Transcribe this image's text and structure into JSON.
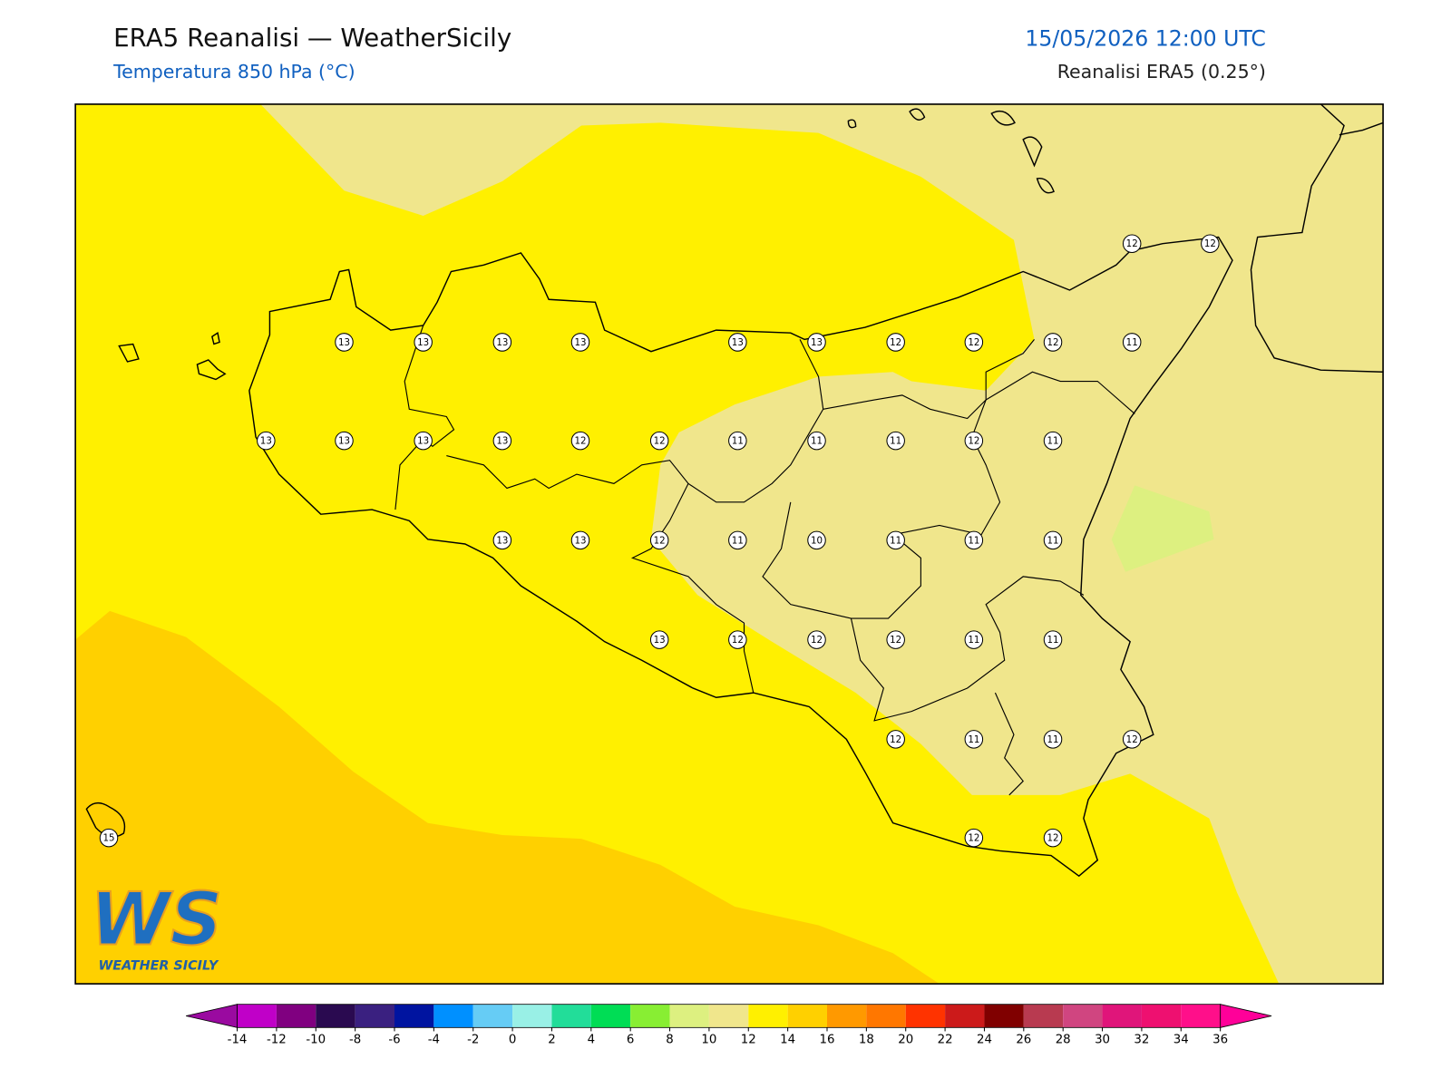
{
  "header": {
    "title": "ERA5 Reanalisi — WeatherSicily",
    "subtitle": "Temperatura 850 hPa (°C)",
    "valid_time": "15/05/2026 12:00 UTC",
    "source": "Reanalisi ERA5 (0.25°)"
  },
  "map": {
    "station_grid": [
      [
        null,
        null,
        null,
        null,
        null,
        null,
        null,
        null,
        null,
        null,
        null,
        null,
        12,
        12
      ],
      [
        null,
        null,
        13,
        13,
        13,
        13,
        null,
        13,
        13,
        12,
        12,
        12,
        11,
        null
      ],
      [
        null,
        13,
        13,
        13,
        13,
        12,
        12,
        11,
        11,
        11,
        12,
        11,
        null,
        null
      ],
      [
        null,
        null,
        null,
        null,
        13,
        13,
        12,
        11,
        10,
        11,
        11,
        11,
        null,
        null
      ],
      [
        null,
        null,
        null,
        null,
        null,
        null,
        13,
        12,
        12,
        12,
        11,
        11,
        null,
        null
      ],
      [
        null,
        null,
        null,
        null,
        null,
        null,
        null,
        null,
        null,
        12,
        11,
        11,
        12,
        null
      ],
      [
        15,
        null,
        null,
        null,
        null,
        null,
        null,
        null,
        null,
        null,
        12,
        12,
        null,
        null
      ]
    ]
  },
  "logo": {
    "mark": "WS",
    "name": "WEATHER SICILY"
  },
  "colorbar": {
    "ticks": [
      -14,
      -12,
      -10,
      -8,
      -6,
      -4,
      -2,
      0,
      2,
      4,
      6,
      8,
      10,
      12,
      14,
      16,
      18,
      20,
      22,
      24,
      26,
      28,
      30,
      32,
      34,
      36
    ],
    "colors": [
      "#c000c8",
      "#800080",
      "#2a0a50",
      "#3a2080",
      "#0014a0",
      "#0090ff",
      "#66ccf5",
      "#99f0e6",
      "#22dd99",
      "#00dd55",
      "#88ee33",
      "#ddf080",
      "#f0e68c",
      "#fff000",
      "#ffd000",
      "#ff9900",
      "#ff7700",
      "#ff3300",
      "#cc1a1a",
      "#800000",
      "#b83a50",
      "#d04580",
      "#e0157a",
      "#ee1070",
      "#ff0f8a"
    ],
    "extend_colors": [
      "#9a0aa0",
      "#ff0099"
    ]
  }
}
